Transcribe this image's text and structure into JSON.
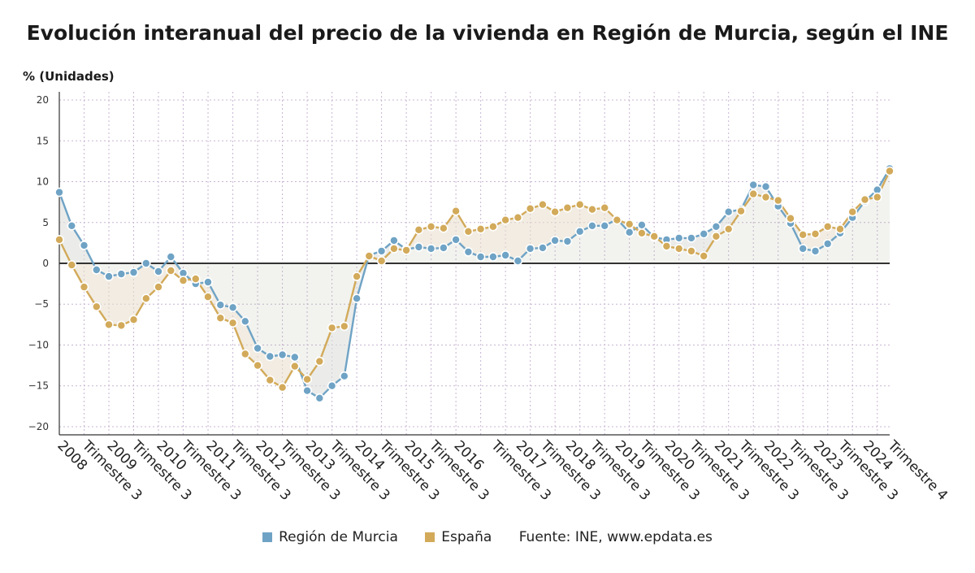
{
  "title": "Evolución interanual del precio de la vivienda en Región de Murcia, según el INE",
  "chart_data": {
    "type": "line",
    "title": "Evolución interanual del precio de la vivienda en Región de Murcia, según el INE",
    "ylabel": "% (Unidades)",
    "ylim": [
      -21,
      21
    ],
    "yticks": [
      20,
      15,
      10,
      5,
      0,
      -5,
      -10,
      -15,
      -20
    ],
    "x_start": "2008 Trimestre 1",
    "x_end": "2024 Trimestre 4",
    "tick_labels": [
      "2008",
      "Trimestre 3",
      "2009",
      "Trimestre 3",
      "2010",
      "Trimestre 3",
      "2011",
      "Trimestre 3",
      "2012",
      "Trimestre 3",
      "2013",
      "Trimestre 3",
      "2014",
      "Trimestre 3",
      "2015",
      "Trimestre 3",
      "2016",
      "Trimestre 3",
      "2017",
      "Trimestre 3",
      "2018",
      "Trimestre 3",
      "2019",
      "Trimestre 3",
      "2020",
      "Trimestre 3",
      "2021",
      "Trimestre 3",
      "2022",
      "Trimestre 3",
      "2023",
      "Trimestre 3",
      "2024",
      "Trimestre 4"
    ],
    "grid": true,
    "legend_position": "bottom-center",
    "series": [
      {
        "name": "Región de Murcia",
        "color": "#6fa3c5",
        "values": [
          8.7,
          4.6,
          2.2,
          -0.8,
          -1.6,
          -1.3,
          -1.1,
          0.0,
          -1.0,
          0.8,
          -1.2,
          -2.5,
          -2.3,
          -5.1,
          -5.4,
          -7.1,
          -10.4,
          -11.4,
          -11.2,
          -11.5,
          -15.6,
          -16.5,
          -15.0,
          -13.8,
          -4.3,
          1.0,
          1.5,
          2.8,
          1.7,
          2.0,
          1.8,
          1.9,
          2.9,
          1.4,
          0.8,
          0.8,
          1.0,
          0.3,
          1.8,
          1.9,
          2.8,
          2.7,
          3.9,
          4.6,
          4.6,
          5.4,
          3.8,
          4.7,
          3.2,
          2.9,
          3.1,
          3.1,
          3.6,
          4.5,
          6.3,
          6.6,
          9.6,
          9.4,
          7.0,
          4.9,
          1.8,
          1.5,
          2.4,
          3.7,
          5.6,
          7.6,
          9.0,
          11.6
        ]
      },
      {
        "name": "España",
        "color": "#d2aa5a",
        "values": [
          2.9,
          -0.2,
          -2.9,
          -5.3,
          -7.5,
          -7.6,
          -6.9,
          -4.3,
          -2.9,
          -0.9,
          -2.1,
          -1.9,
          -4.1,
          -6.7,
          -7.3,
          -11.1,
          -12.5,
          -14.3,
          -15.2,
          -12.6,
          -14.2,
          -12.0,
          -7.9,
          -7.7,
          -1.6,
          0.9,
          0.3,
          1.8,
          1.6,
          4.1,
          4.5,
          4.3,
          6.4,
          3.9,
          4.2,
          4.5,
          5.3,
          5.6,
          6.7,
          7.2,
          6.3,
          6.8,
          7.2,
          6.6,
          6.8,
          5.3,
          4.8,
          3.7,
          3.3,
          2.1,
          1.8,
          1.5,
          0.9,
          3.3,
          4.2,
          6.4,
          8.5,
          8.1,
          7.7,
          5.5,
          3.5,
          3.6,
          4.5,
          4.2,
          6.3,
          7.8,
          8.1,
          11.3
        ]
      }
    ]
  },
  "legend": {
    "murcia_label": "Región de Murcia",
    "espana_label": "España",
    "source": "Fuente: INE, www.epdata.es"
  },
  "colors": {
    "murcia": "#6fa3c5",
    "espana": "#d2aa5a",
    "grid": "#c8b4d2",
    "zero_line": "#333333"
  }
}
